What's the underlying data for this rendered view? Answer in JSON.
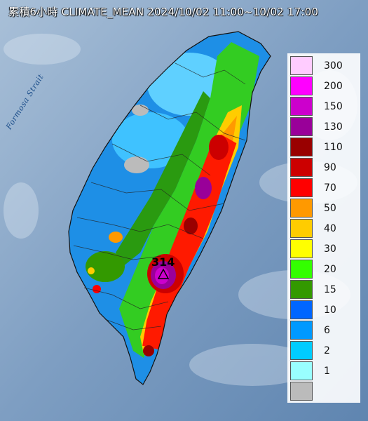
{
  "header": {
    "title": "累積6小時 CLIMATE_MEAN 2024/10/02 11:00~10/02 17:00"
  },
  "map": {
    "sea_label": "Formosa Strait",
    "max_station_value": "314",
    "max_marker_icon": "triangle-icon",
    "sea_color": "#7fa1c6",
    "land_base_color": "#1e8fe6"
  },
  "legend": {
    "items": [
      {
        "label": "300",
        "color": "#ffccff"
      },
      {
        "label": "200",
        "color": "#ff00ff"
      },
      {
        "label": "150",
        "color": "#cc00cc"
      },
      {
        "label": "130",
        "color": "#990099"
      },
      {
        "label": "110",
        "color": "#990000"
      },
      {
        "label": "90",
        "color": "#cc0000"
      },
      {
        "label": "70",
        "color": "#ff0000"
      },
      {
        "label": "50",
        "color": "#ff9900"
      },
      {
        "label": "40",
        "color": "#ffcc00"
      },
      {
        "label": "30",
        "color": "#ffff00"
      },
      {
        "label": "20",
        "color": "#33ff00"
      },
      {
        "label": "15",
        "color": "#339900"
      },
      {
        "label": "10",
        "color": "#0066ff"
      },
      {
        "label": "6",
        "color": "#0099ff"
      },
      {
        "label": "2",
        "color": "#00ccff"
      },
      {
        "label": "1",
        "color": "#99ffff"
      },
      {
        "label": "",
        "color": "#bbbbbb"
      }
    ]
  }
}
